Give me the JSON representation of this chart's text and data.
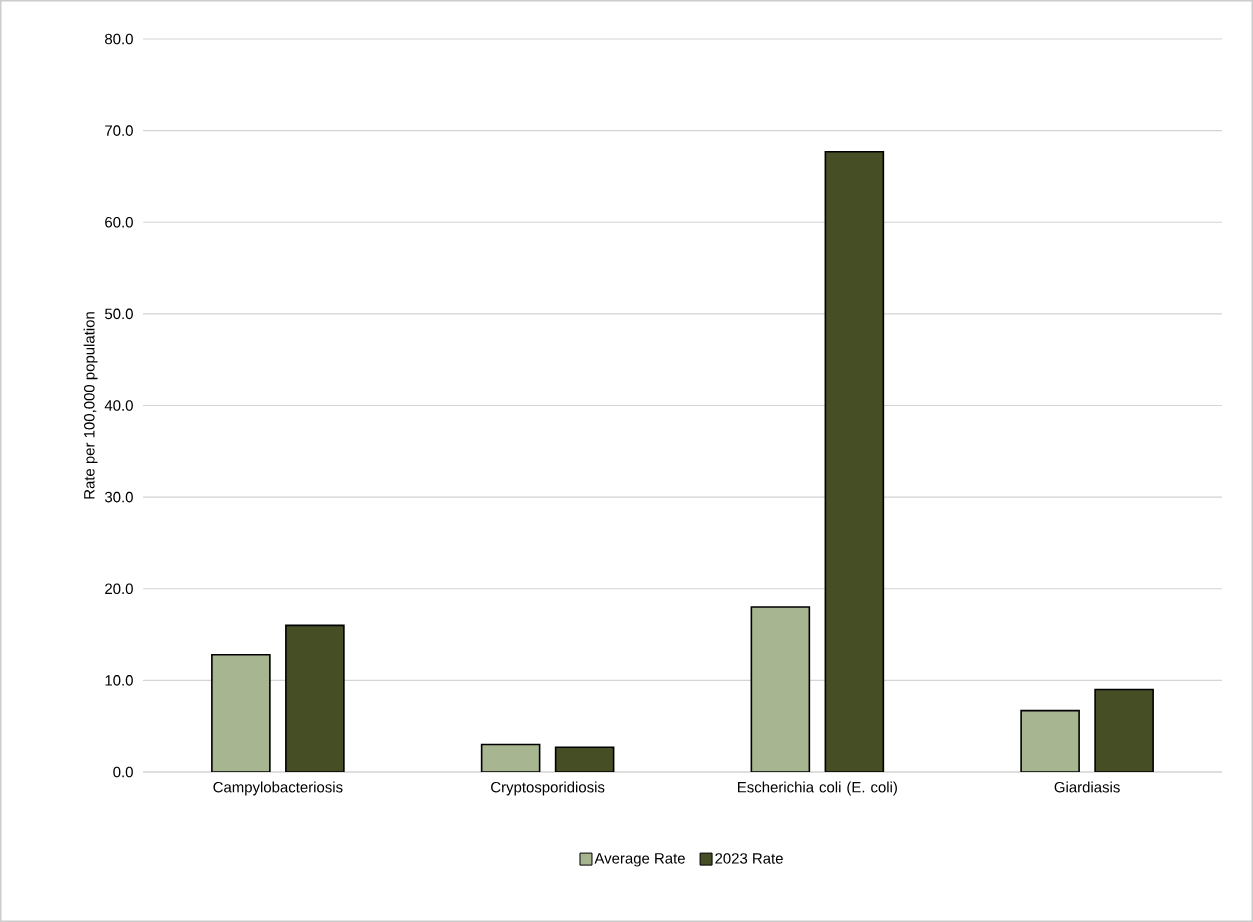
{
  "chart_data": {
    "type": "bar",
    "ylabel": "Rate per 100,000 population",
    "categories": [
      "Campylobacteriosis",
      "Cryptosporidiosis",
      "Escherichia coli (E. coli)",
      "Giardiasis"
    ],
    "series": [
      {
        "name": "Average Rate",
        "color": "#a7b590",
        "values": [
          12.8,
          3.0,
          18.0,
          6.7
        ]
      },
      {
        "name": "2023 Rate",
        "color": "#464e26",
        "values": [
          16.0,
          2.7,
          67.7,
          9.0
        ]
      }
    ],
    "ylim": [
      0,
      80
    ],
    "yticks": [
      {
        "value": 0,
        "label": "0.0"
      },
      {
        "value": 10,
        "label": "10.0"
      },
      {
        "value": 20,
        "label": "20.0"
      },
      {
        "value": 30,
        "label": "30.0"
      },
      {
        "value": 40,
        "label": "40.0"
      },
      {
        "value": 50,
        "label": "50.0"
      },
      {
        "value": 60,
        "label": "60.0"
      },
      {
        "value": 70,
        "label": "70.0"
      },
      {
        "value": 80,
        "label": "80.0"
      }
    ],
    "grid": "y",
    "legend": "bottom"
  }
}
